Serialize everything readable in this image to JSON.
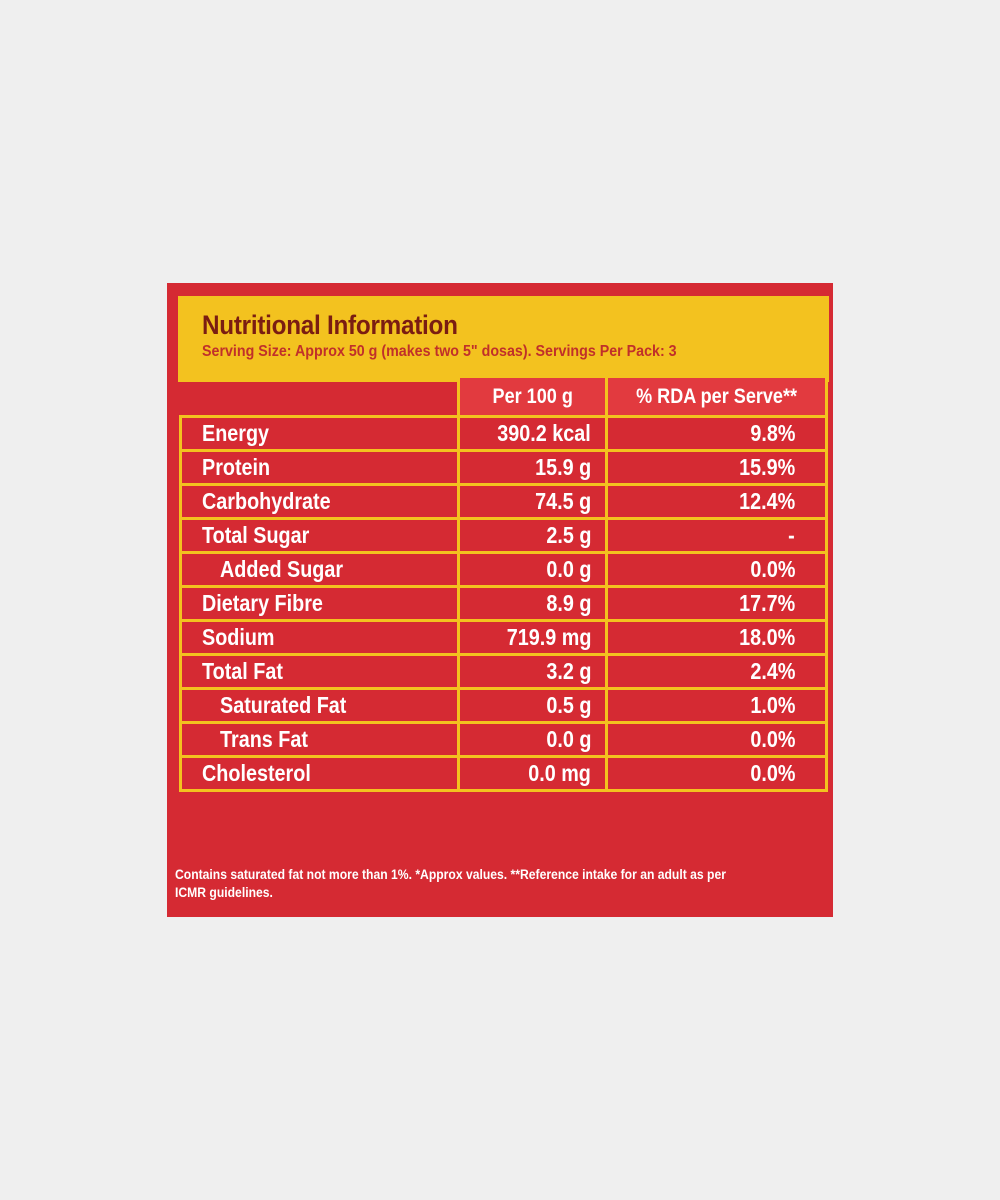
{
  "label": {
    "title": "Nutritional Information",
    "serving": "Serving Size: Approx 50 g (makes two 5\" dosas). Servings Per Pack: 3",
    "columns": {
      "per100": "Per 100 g",
      "rda": "% RDA per Serve**"
    },
    "rows": [
      {
        "name": "Energy",
        "per100": "390.2 kcal",
        "rda": "9.8%",
        "indent": false
      },
      {
        "name": "Protein",
        "per100": "15.9 g",
        "rda": "15.9%",
        "indent": false
      },
      {
        "name": "Carbohydrate",
        "per100": "74.5 g",
        "rda": "12.4%",
        "indent": false
      },
      {
        "name": "Total Sugar",
        "per100": "2.5 g",
        "rda": "-",
        "indent": false
      },
      {
        "name": "Added Sugar",
        "per100": "0.0 g",
        "rda": "0.0%",
        "indent": true
      },
      {
        "name": "Dietary Fibre",
        "per100": "8.9 g",
        "rda": "17.7%",
        "indent": false
      },
      {
        "name": "Sodium",
        "per100": "719.9 mg",
        "rda": "18.0%",
        "indent": false
      },
      {
        "name": "Total Fat",
        "per100": "3.2 g",
        "rda": "2.4%",
        "indent": false
      },
      {
        "name": "Saturated Fat",
        "per100": "0.5 g",
        "rda": "1.0%",
        "indent": true
      },
      {
        "name": "Trans Fat",
        "per100": "0.0 g",
        "rda": "0.0%",
        "indent": true
      },
      {
        "name": "Cholesterol",
        "per100": "0.0 mg",
        "rda": "0.0%",
        "indent": false
      }
    ],
    "footnote": "Contains saturated fat not more than 1%. *Approx values. **Reference intake for an adult as per ICMR guidelines."
  },
  "colors": {
    "panel": "#d52a33",
    "accent": "#f3c21f",
    "title": "#7a1d12"
  }
}
